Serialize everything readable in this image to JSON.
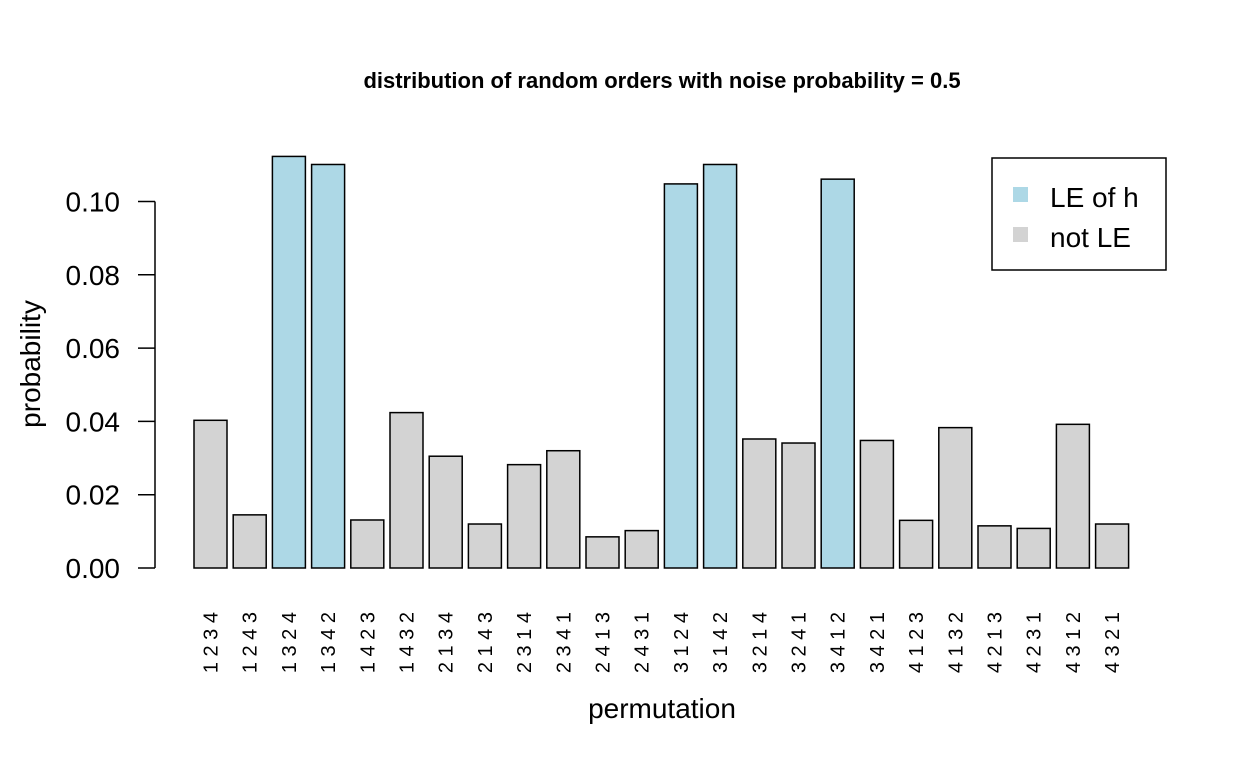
{
  "chart_data": {
    "type": "bar",
    "title": "distribution of random orders with noise probability =  0.5",
    "xlabel": "permutation",
    "ylabel": "probability",
    "ylim": [
      0,
      0.112
    ],
    "yticks": [
      "0.00",
      "0.02",
      "0.04",
      "0.06",
      "0.08",
      "0.10"
    ],
    "ytick_values": [
      0,
      0.02,
      0.04,
      0.06,
      0.08,
      0.1
    ],
    "categories": [
      "1 2 3 4",
      "1 2 4 3",
      "1 3 2 4",
      "1 3 4 2",
      "1 4 2 3",
      "1 4 3 2",
      "2 1 3 4",
      "2 1 4 3",
      "2 3 1 4",
      "2 3 4 1",
      "2 4 1 3",
      "2 4 3 1",
      "3 1 2 4",
      "3 1 4 2",
      "3 2 1 4",
      "3 2 4 1",
      "3 4 1 2",
      "3 4 2 1",
      "4 1 2 3",
      "4 1 3 2",
      "4 2 1 3",
      "4 2 3 1",
      "4 3 1 2",
      "4 3 2 1"
    ],
    "values": [
      0.0403,
      0.0145,
      0.1123,
      0.1101,
      0.0131,
      0.0424,
      0.0305,
      0.012,
      0.0282,
      0.032,
      0.0085,
      0.0102,
      0.1048,
      0.1101,
      0.0352,
      0.0341,
      0.1061,
      0.0348,
      0.013,
      0.0383,
      0.0115,
      0.0108,
      0.0392,
      0.012
    ],
    "group": [
      "not LE",
      "not LE",
      "LE of h",
      "LE of h",
      "not LE",
      "not LE",
      "not LE",
      "not LE",
      "not LE",
      "not LE",
      "not LE",
      "not LE",
      "LE of h",
      "LE of h",
      "not LE",
      "not LE",
      "LE of h",
      "not LE",
      "not LE",
      "not LE",
      "not LE",
      "not LE",
      "not LE",
      "not LE"
    ],
    "legend": [
      {
        "label": "LE of h",
        "color": "#add8e6"
      },
      {
        "label": "not LE",
        "color": "#d3d3d3"
      }
    ],
    "legend_position": "top-right",
    "grid": false
  }
}
